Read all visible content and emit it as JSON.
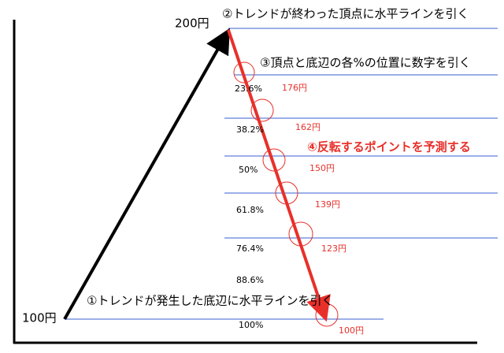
{
  "top_price": "200円",
  "bottom_price": "100円",
  "step1": "①トレンドが発生した底辺に水平ラインを引く",
  "step2": "②トレンドが終わった頂点に水平ラインを引く",
  "step3": "③頂点と底辺の各%の位置に数字を引く",
  "step4": "④反転するポイントを予測する",
  "levels": [
    {
      "percent": "23.6%",
      "price": "176円"
    },
    {
      "percent": "38.2%",
      "price": "162円"
    },
    {
      "percent": "50%",
      "price": "150円"
    },
    {
      "percent": "61.8%",
      "price": "139円"
    },
    {
      "percent": "76.4%",
      "price": "123円"
    },
    {
      "percent": "88.6%"
    },
    {
      "percent": "100%",
      "price": "100円"
    }
  ]
}
